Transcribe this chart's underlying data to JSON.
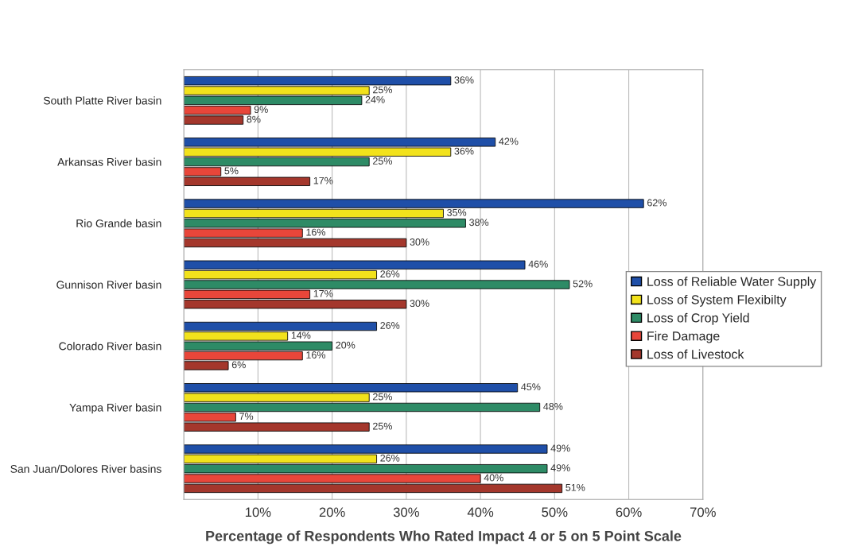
{
  "chart_data": {
    "type": "bar",
    "orientation": "horizontal",
    "xlabel": "Percentage of Respondents Who Rated Impact 4 or 5 on 5 Point Scale",
    "categories": [
      "South Platte River basin",
      "Arkansas River basin",
      "Rio Grande basin",
      "Gunnison River basin",
      "Colorado River basin",
      "Yampa River basin",
      "San Juan/Dolores River basins"
    ],
    "series": [
      {
        "name": "Loss of Reliable Water Supply",
        "color": "#1f4fa8",
        "values": [
          36,
          42,
          62,
          46,
          26,
          45,
          49
        ],
        "value_labels": [
          "36%",
          "42%",
          "62%",
          "46%",
          "26%",
          "45%",
          "49%"
        ]
      },
      {
        "name": "Loss of System Flexibilty",
        "color": "#f2e21c",
        "values": [
          25,
          36,
          35,
          26,
          14,
          25,
          26
        ],
        "value_labels": [
          "25%",
          "36%",
          "35%",
          "26%",
          "14%",
          "25%",
          "26%"
        ]
      },
      {
        "name": "Loss of Crop Yield",
        "color": "#2e8b66",
        "values": [
          24,
          25,
          38,
          52,
          20,
          48,
          49
        ],
        "value_labels": [
          "24%",
          "25%",
          "38%",
          "52%",
          "20%",
          "48%",
          "49%"
        ]
      },
      {
        "name": "Fire Damage",
        "color": "#e8463a",
        "values": [
          9,
          5,
          16,
          17,
          16,
          7,
          40
        ],
        "value_labels": [
          "9%",
          "5%",
          "16%",
          "17%",
          "16%",
          "7%",
          "40%"
        ]
      },
      {
        "name": "Loss of Livestock",
        "color": "#a4372c",
        "values": [
          8,
          17,
          30,
          30,
          6,
          25,
          51
        ],
        "value_labels": [
          "8%",
          "17%",
          "30%",
          "30%",
          "6%",
          "25%",
          "51%"
        ]
      }
    ],
    "xlim": [
      0,
      70
    ],
    "xticks": [
      {
        "value": 0,
        "label": null
      },
      {
        "value": 10,
        "label": "10%"
      },
      {
        "value": 20,
        "label": "20%"
      },
      {
        "value": 30,
        "label": "30%"
      },
      {
        "value": 40,
        "label": "40%"
      },
      {
        "value": 50,
        "label": "50%"
      },
      {
        "value": 60,
        "label": "60%"
      },
      {
        "value": 70,
        "label": "70%"
      }
    ],
    "grid": "x",
    "legend": "right"
  }
}
